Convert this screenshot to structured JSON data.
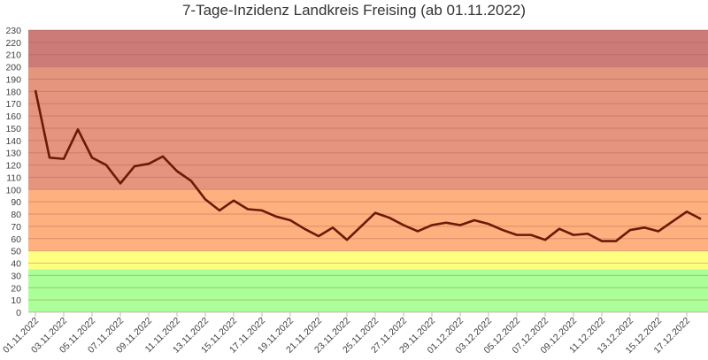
{
  "chart_data": {
    "type": "line",
    "title": "7-Tage-Inzidenz Landkreis Freising (ab 01.11.2022)",
    "xlabel": "",
    "ylabel": "",
    "ylim": [
      0,
      230
    ],
    "yticks": [
      0,
      10,
      20,
      30,
      40,
      50,
      60,
      70,
      80,
      90,
      100,
      110,
      120,
      130,
      140,
      150,
      160,
      170,
      180,
      190,
      200,
      210,
      220,
      230
    ],
    "grid": true,
    "legend": "none",
    "bands": [
      {
        "from": 0,
        "to": 35,
        "color": "#aaff99"
      },
      {
        "from": 35,
        "to": 50,
        "color": "#ffff80"
      },
      {
        "from": 50,
        "to": 100,
        "color": "#ffb07f"
      },
      {
        "from": 100,
        "to": 200,
        "color": "#e5957e"
      },
      {
        "from": 200,
        "to": 230,
        "color": "#cc7b79"
      }
    ],
    "line_color": "#6b1a05",
    "x_tick_labels": [
      "01.11.2022",
      "03.11.2022",
      "05.11.2022",
      "07.11.2022",
      "09.11.2022",
      "11.11.2022",
      "13.11.2022",
      "15.11.2022",
      "17.11.2022",
      "19.11.2022",
      "21.11.2022",
      "23.11.2022",
      "25.11.2022",
      "27.11.2022",
      "29.11.2022",
      "01.12.2022",
      "03.12.2022",
      "05.12.2022",
      "07.12.2022",
      "09.12.2022",
      "11.12.2022",
      "13.12.2022",
      "15.12.2022",
      "17.12.2022"
    ],
    "series": [
      {
        "name": "7-Tage-Inzidenz",
        "values": [
          181,
          126,
          125,
          149,
          126,
          120,
          105,
          119,
          121,
          127,
          115,
          107,
          92,
          83,
          91,
          84,
          83,
          78,
          75,
          68,
          62,
          69,
          59,
          70,
          81,
          77,
          71,
          66,
          71,
          73,
          71,
          75,
          72,
          67,
          63,
          63,
          59,
          68,
          63,
          64,
          58,
          58,
          67,
          69,
          66,
          74,
          82,
          76
        ]
      }
    ]
  }
}
